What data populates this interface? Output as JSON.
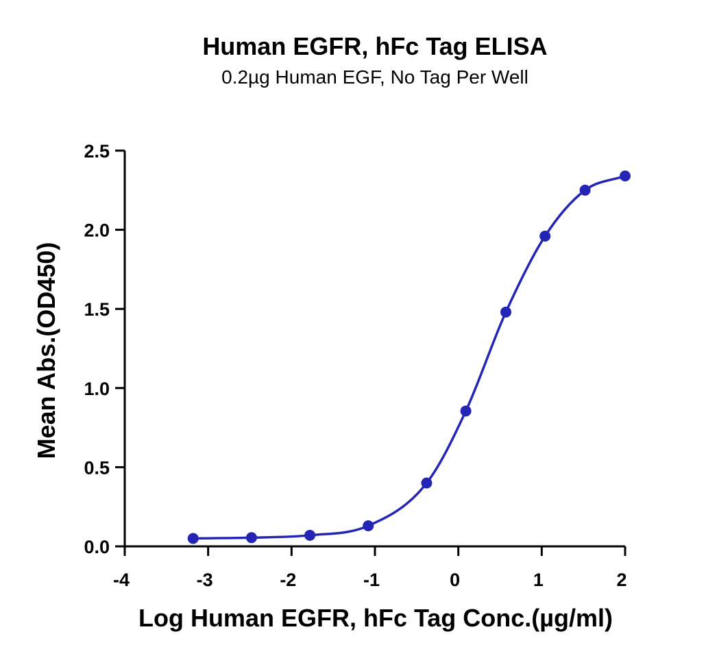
{
  "chart_data": {
    "type": "scatter",
    "title": "Human EGFR, hFc Tag ELISA",
    "subtitle": "0.2µg Human EGF, No Tag Per Well",
    "xlabel": "Log Human EGFR, hFc Tag Conc.(µg/ml)",
    "ylabel": "Mean Abs.(OD450)",
    "xlim": [
      -4,
      2
    ],
    "ylim": [
      0,
      2.5
    ],
    "x_ticks": [
      -4,
      -3,
      -2,
      -1,
      0,
      1,
      2
    ],
    "x_tick_labels": [
      "-4",
      "-3",
      "-2",
      "-1",
      "0",
      "1",
      "2"
    ],
    "y_ticks": [
      0,
      0.5,
      1,
      1.5,
      2,
      2.5
    ],
    "y_tick_labels": [
      "0.0",
      "0.5",
      "1.0",
      "1.5",
      "2.0",
      "2.5"
    ],
    "grid": false,
    "fit_curve": "sigmoidal",
    "series": [
      {
        "x": [
          -3.18,
          -2.48,
          -1.78,
          -1.08,
          -0.38,
          0.09,
          0.57,
          1.04,
          1.52,
          2.0
        ],
        "y": [
          0.05,
          0.055,
          0.07,
          0.13,
          0.4,
          0.855,
          1.48,
          1.96,
          2.25,
          2.34
        ],
        "color": "#2525b5"
      }
    ]
  }
}
